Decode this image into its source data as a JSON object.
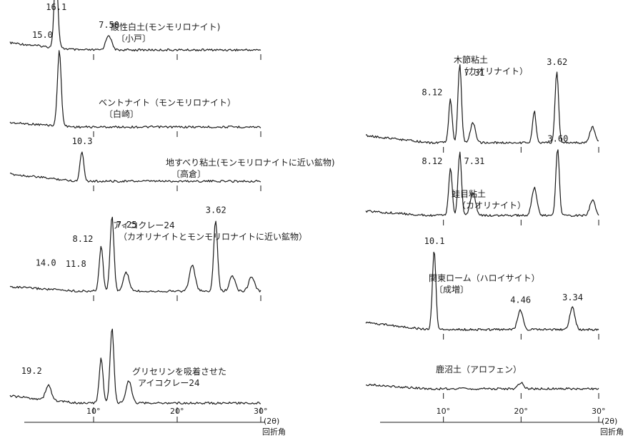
{
  "chart_data": [
    {
      "type": "line",
      "panel": "left",
      "x_axis": {
        "ticks": [
          "10°",
          "20°",
          "30°"
        ],
        "tick_values": [
          10,
          20,
          30
        ],
        "unit": "(2θ)",
        "xlabel": "回折角",
        "xlim": [
          0,
          30
        ]
      },
      "traces": [
        {
          "key": "sanseihakudo",
          "title": "酸性白土(モンモリロナイト)",
          "subtitle": "〔小戸〕",
          "peaks": [
            {
              "label": "16.1",
              "d": 16.1,
              "two_theta": 5.5
            },
            {
              "label": "7.50",
              "d": 7.5,
              "two_theta": 11.8
            }
          ],
          "peak_shape": [
            [
              5.5,
              1.0
            ],
            [
              11.8,
              0.2
            ]
          ]
        },
        {
          "key": "bentonite",
          "title": "ベントナイト（モンモリロナイト）",
          "subtitle": "〔白崎〕",
          "peaks": [
            {
              "label": "15.0",
              "d": 15.0,
              "two_theta": 5.9
            }
          ],
          "peak_shape": [
            [
              5.9,
              1.0
            ]
          ]
        },
        {
          "key": "jisuberi",
          "title": "地すべり粘土(モンモリロナイトに近い鉱物)",
          "subtitle": "〔高倉〕",
          "peaks": [
            {
              "label": "10.3",
              "d": 10.3,
              "two_theta": 8.6
            }
          ],
          "peak_shape": [
            [
              8.6,
              0.4
            ]
          ]
        },
        {
          "key": "aicoclay24",
          "title": "アイコクレー24",
          "subtitle": "（カオリナイトとモンモリロナイトに近い鉱物）",
          "peaks": [
            {
              "label": "14.0",
              "d": 14.0,
              "two_theta": 6.3
            },
            {
              "label": "11.8",
              "d": 11.8,
              "two_theta": 7.5
            },
            {
              "label": "8.12",
              "d": 8.12,
              "two_theta": 10.9
            },
            {
              "label": "7.25",
              "d": 7.25,
              "two_theta": 12.2
            },
            {
              "label": "3.62",
              "d": 3.62,
              "two_theta": 24.6
            }
          ],
          "peak_shape": [
            [
              10.9,
              0.6
            ],
            [
              12.2,
              1.0
            ],
            [
              13.9,
              0.25
            ],
            [
              21.8,
              0.35
            ],
            [
              24.6,
              0.95
            ],
            [
              26.6,
              0.2
            ],
            [
              28.9,
              0.2
            ]
          ]
        },
        {
          "key": "glycerin_aicoclay24",
          "title": "グリセリンを吸着させた",
          "subtitle": "アイコクレー24",
          "peaks": [
            {
              "label": "19.2",
              "d": 19.2,
              "two_theta": 4.6
            }
          ],
          "peak_shape": [
            [
              4.6,
              0.2
            ],
            [
              10.9,
              0.6
            ],
            [
              12.2,
              1.0
            ],
            [
              14.2,
              0.3
            ]
          ]
        }
      ]
    },
    {
      "type": "line",
      "panel": "right",
      "x_axis": {
        "ticks": [
          "10°",
          "20°",
          "30°"
        ],
        "tick_values": [
          10,
          20,
          30
        ],
        "unit": "(2θ)",
        "xlabel": "回折角",
        "xlim": [
          0,
          30
        ]
      },
      "traces": [
        {
          "key": "kibushi",
          "title": "木節粘土",
          "subtitle": "（カオリナイト）",
          "peaks": [
            {
              "label": "8.12",
              "d": 8.12,
              "two_theta": 10.9
            },
            {
              "label": "7.31",
              "d": 7.31,
              "two_theta": 12.1
            },
            {
              "label": "3.62",
              "d": 3.62,
              "two_theta": 24.6
            }
          ],
          "peak_shape": [
            [
              10.9,
              0.55
            ],
            [
              12.1,
              1.0
            ],
            [
              13.8,
              0.25
            ],
            [
              21.7,
              0.4
            ],
            [
              24.6,
              0.9
            ],
            [
              29.2,
              0.2
            ]
          ]
        },
        {
          "key": "gairome",
          "title": "蛙目粘土",
          "subtitle": "（カオリナイト）",
          "peaks": [
            {
              "label": "8.12",
              "d": 8.12,
              "two_theta": 10.9
            },
            {
              "label": "7.31",
              "d": 7.31,
              "two_theta": 12.1
            },
            {
              "label": "3.60",
              "d": 3.6,
              "two_theta": 24.7
            }
          ],
          "peak_shape": [
            [
              10.9,
              0.6
            ],
            [
              12.1,
              0.8
            ],
            [
              13.8,
              0.3
            ],
            [
              21.7,
              0.35
            ],
            [
              24.7,
              0.85
            ],
            [
              29.2,
              0.2
            ]
          ]
        },
        {
          "key": "kanto_loam",
          "title": "関東ローム（ハロイサイト）",
          "subtitle": "〔成増〕",
          "peaks": [
            {
              "label": "10.1",
              "d": 10.1,
              "two_theta": 8.8
            },
            {
              "label": "4.46",
              "d": 4.46,
              "two_theta": 19.9
            },
            {
              "label": "3.34",
              "d": 3.34,
              "two_theta": 26.6
            }
          ],
          "peak_shape": [
            [
              8.8,
              1.0
            ],
            [
              19.9,
              0.25
            ],
            [
              26.6,
              0.28
            ]
          ]
        },
        {
          "key": "kanuma",
          "title": "鹿沼土（アロフェン）",
          "subtitle": "",
          "peaks": [],
          "peak_shape": [
            [
              20.0,
              0.08
            ]
          ]
        }
      ]
    }
  ]
}
